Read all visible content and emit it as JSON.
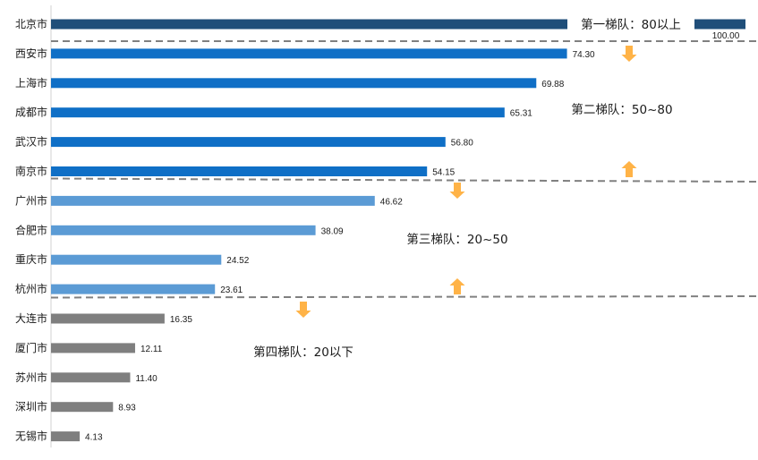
{
  "chart_data": {
    "type": "bar",
    "orientation": "horizontal",
    "categories": [
      "北京市",
      "西安市",
      "上海市",
      "成都市",
      "武汉市",
      "南京市",
      "广州市",
      "合肥市",
      "重庆市",
      "杭州市",
      "大连市",
      "厦门市",
      "苏州市",
      "深圳市",
      "无锡市"
    ],
    "values": [
      100.0,
      74.3,
      69.88,
      65.31,
      56.8,
      54.15,
      46.62,
      38.09,
      24.52,
      23.61,
      16.35,
      12.11,
      11.4,
      8.93,
      4.13
    ],
    "value_labels": [
      "100.00",
      "74.30",
      "69.88",
      "65.31",
      "56.80",
      "54.15",
      "46.62",
      "38.09",
      "24.52",
      "23.61",
      "16.35",
      "12.11",
      "11.40",
      "8.93",
      "4.13"
    ],
    "bar_colors": [
      "#1F4E79",
      "#0F6FC6",
      "#0F6FC6",
      "#0F6FC6",
      "#0F6FC6",
      "#0F6FC6",
      "#5B9BD5",
      "#5B9BD5",
      "#5B9BD5",
      "#5B9BD5",
      "#7F7F7F",
      "#7F7F7F",
      "#7F7F7F",
      "#7F7F7F",
      "#7F7F7F"
    ],
    "xlim": [
      0,
      100
    ],
    "grid": false,
    "legend": "none",
    "tiers": [
      {
        "label": "第一梯队：80以上",
        "first": 0,
        "last": 0
      },
      {
        "label": "第二梯队：50~80",
        "first": 1,
        "last": 5
      },
      {
        "label": "第三梯队：20~50",
        "first": 6,
        "last": 9
      },
      {
        "label": "第四梯队：20以下",
        "first": 10,
        "last": 14
      }
    ],
    "arrow_color": "#FFB347",
    "divider_color": "#808080"
  }
}
